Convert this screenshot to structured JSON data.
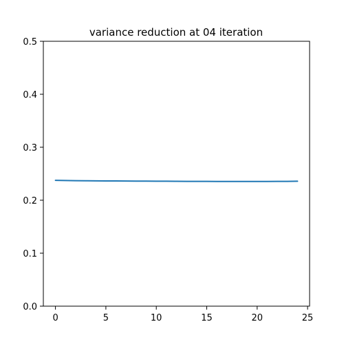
{
  "chart_data": {
    "type": "line",
    "title": "variance reduction at 04 iteration",
    "xlabel": "",
    "ylabel": "",
    "xlim": [
      -1.2,
      25.2
    ],
    "ylim": [
      0,
      0.5
    ],
    "xticks": [
      0,
      5,
      10,
      15,
      20,
      25
    ],
    "xtick_labels": [
      "0",
      "5",
      "10",
      "15",
      "20",
      "25"
    ],
    "yticks": [
      0.0,
      0.1,
      0.2,
      0.3,
      0.4,
      0.5
    ],
    "ytick_labels": [
      "0.0",
      "0.1",
      "0.2",
      "0.3",
      "0.4",
      "0.5"
    ],
    "grid": false,
    "series": [
      {
        "color": "#1f77b4",
        "x": [
          0,
          1,
          2,
          3,
          4,
          5,
          6,
          7,
          8,
          9,
          10,
          11,
          12,
          13,
          14,
          15,
          16,
          17,
          18,
          19,
          20,
          21,
          22,
          23,
          24
        ],
        "y": [
          0.2375,
          0.2372,
          0.2369,
          0.2367,
          0.2365,
          0.2364,
          0.2363,
          0.2362,
          0.2361,
          0.236,
          0.2359,
          0.2358,
          0.2357,
          0.2356,
          0.2355,
          0.2355,
          0.2354,
          0.2354,
          0.2354,
          0.2354,
          0.2354,
          0.2354,
          0.2355,
          0.2356,
          0.2358
        ]
      }
    ]
  }
}
